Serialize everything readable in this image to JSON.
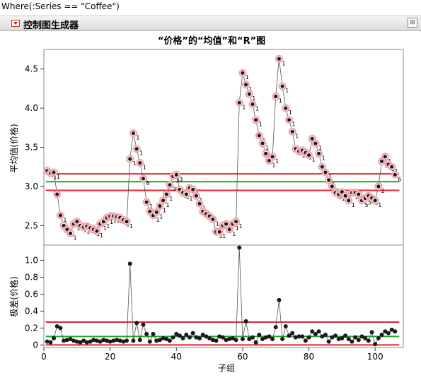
{
  "where_clause": "Where(:Series == \"Coffee\")",
  "platform_title": "控制图生成器",
  "colors": {
    "limit": "#e8222e",
    "center": "#22a32a",
    "point": "#1a1a1a",
    "flag": "#f2a0a8",
    "line": "#555555"
  },
  "chart_data": [
    {
      "type": "line",
      "title": "“价格”的“均值”和“R”图",
      "xlabel": "",
      "ylabel": "平均值(价格)",
      "ylim": [
        2.25,
        4.75
      ],
      "yticks": [
        "2.5",
        "3.0",
        "3.5",
        "4.0",
        "4.5"
      ],
      "x": [
        1,
        2,
        3,
        4,
        5,
        6,
        7,
        8,
        9,
        10,
        11,
        12,
        13,
        14,
        15,
        16,
        17,
        18,
        19,
        20,
        21,
        22,
        23,
        24,
        25,
        26,
        27,
        28,
        29,
        30,
        31,
        32,
        33,
        34,
        35,
        36,
        37,
        38,
        39,
        40,
        41,
        42,
        43,
        44,
        45,
        46,
        47,
        48,
        49,
        50,
        51,
        52,
        53,
        54,
        55,
        56,
        57,
        58,
        59,
        60,
        61,
        62,
        63,
        64,
        65,
        66,
        67,
        68,
        69,
        70,
        71,
        72,
        73,
        74,
        75,
        76,
        77,
        78,
        79,
        80,
        81,
        82,
        83,
        84,
        85,
        86,
        87,
        88,
        89,
        90,
        91,
        92,
        93,
        94,
        95,
        96,
        97,
        98,
        99,
        100,
        101,
        102,
        103,
        104,
        105,
        106
      ],
      "values": [
        3.2,
        3.17,
        3.18,
        2.9,
        2.63,
        2.5,
        2.45,
        2.4,
        2.52,
        2.55,
        2.5,
        2.48,
        2.49,
        2.47,
        2.45,
        2.43,
        2.52,
        2.55,
        2.6,
        2.62,
        2.62,
        2.61,
        2.6,
        2.57,
        2.55,
        3.35,
        3.68,
        3.48,
        3.3,
        3.1,
        2.8,
        2.68,
        2.63,
        2.67,
        2.75,
        2.82,
        2.9,
        3.02,
        3.13,
        3.15,
        2.96,
        2.92,
        2.9,
        2.98,
        2.96,
        2.88,
        2.78,
        2.68,
        2.65,
        2.62,
        2.58,
        2.42,
        2.42,
        2.5,
        2.52,
        2.45,
        2.52,
        2.55,
        4.07,
        4.45,
        4.3,
        4.18,
        4.05,
        3.85,
        3.65,
        3.55,
        3.42,
        3.33,
        3.38,
        4.15,
        4.63,
        4.28,
        4.0,
        3.85,
        3.7,
        3.48,
        3.45,
        3.46,
        3.43,
        3.4,
        3.61,
        3.55,
        3.42,
        3.25,
        3.18,
        3.08,
        3.0,
        2.92,
        2.9,
        2.93,
        2.88,
        2.82,
        2.92,
        2.92,
        2.9,
        2.82,
        2.85,
        2.88,
        2.85,
        2.82,
        3.0,
        3.32,
        3.38,
        3.28,
        3.25,
        3.15
      ],
      "point_labels": [
        "1",
        "1",
        "1",
        "",
        "1",
        "1",
        "1",
        "1",
        "1",
        "1",
        "1",
        "1",
        "1",
        "1",
        "1",
        "1",
        "1",
        "1",
        "1",
        "1",
        "1",
        "1",
        "1",
        "1",
        "1",
        "1",
        "1",
        "1",
        "1",
        "8",
        "1",
        "1",
        "1",
        "1",
        "1",
        "1",
        "1",
        "3",
        "3",
        "3",
        "8",
        "1",
        "1",
        "1",
        "1",
        "1",
        "1",
        "1",
        "1",
        "1",
        "1",
        "1",
        "1",
        "1",
        "1",
        "1",
        "1",
        "1",
        "1",
        "1",
        "1",
        "1",
        "1",
        "1",
        "1",
        "1",
        "1",
        "1",
        "1",
        "1",
        "1",
        "1",
        "1",
        "1",
        "1",
        "1",
        "1",
        "1",
        "1",
        "1",
        "1",
        "1",
        "1",
        "1",
        "1",
        "1",
        "3",
        "3",
        "1",
        "1",
        "1",
        "1",
        "1",
        "1",
        "1",
        "5",
        "5",
        "1",
        "1",
        "1",
        "2",
        "1",
        "1",
        "1",
        "1",
        "6"
      ],
      "ucl": 3.16,
      "center": 3.06,
      "lcl": 2.95,
      "grid": false
    },
    {
      "type": "line",
      "title": "",
      "xlabel": "子组",
      "ylabel": "极差(价格)",
      "ylim": [
        -0.03,
        1.18
      ],
      "yticks": [
        "0",
        "0.2",
        "0.4",
        "0.6",
        "0.8",
        "1.0"
      ],
      "xticks": [
        "0",
        "20",
        "40",
        "60",
        "80",
        "100"
      ],
      "x": [
        1,
        2,
        3,
        4,
        5,
        6,
        7,
        8,
        9,
        10,
        11,
        12,
        13,
        14,
        15,
        16,
        17,
        18,
        19,
        20,
        21,
        22,
        23,
        24,
        25,
        26,
        27,
        28,
        29,
        30,
        31,
        32,
        33,
        34,
        35,
        36,
        37,
        38,
        39,
        40,
        41,
        42,
        43,
        44,
        45,
        46,
        47,
        48,
        49,
        50,
        51,
        52,
        53,
        54,
        55,
        56,
        57,
        58,
        59,
        60,
        61,
        62,
        63,
        64,
        65,
        66,
        67,
        68,
        69,
        70,
        71,
        72,
        73,
        74,
        75,
        76,
        77,
        78,
        79,
        80,
        81,
        82,
        83,
        84,
        85,
        86,
        87,
        88,
        89,
        90,
        91,
        92,
        93,
        94,
        95,
        96,
        97,
        98,
        99,
        100,
        101,
        102,
        103,
        104,
        105,
        106
      ],
      "values": [
        0.04,
        0.03,
        0.08,
        0.22,
        0.2,
        0.05,
        0.06,
        0.07,
        0.05,
        0.04,
        0.03,
        0.05,
        0.03,
        0.04,
        0.06,
        0.05,
        0.04,
        0.06,
        0.05,
        0.04,
        0.05,
        0.06,
        0.05,
        0.04,
        0.05,
        0.96,
        0.05,
        0.26,
        0.06,
        0.24,
        0.13,
        0.04,
        0.13,
        0.05,
        0.06,
        0.08,
        0.07,
        0.05,
        0.09,
        0.13,
        0.11,
        0.08,
        0.12,
        0.09,
        0.14,
        0.09,
        0.08,
        0.12,
        0.1,
        0.08,
        0.06,
        0.05,
        0.1,
        0.09,
        0.06,
        0.07,
        0.08,
        0.06,
        1.15,
        0.07,
        0.28,
        0.07,
        0.09,
        0.03,
        0.12,
        0.07,
        0.09,
        0.1,
        0.07,
        0.21,
        0.53,
        0.07,
        0.22,
        0.11,
        0.14,
        0.09,
        0.1,
        0.1,
        0.05,
        0.09,
        0.16,
        0.13,
        0.16,
        0.1,
        0.12,
        0.04,
        0.09,
        0.11,
        0.07,
        0.08,
        0.11,
        0.07,
        0.04,
        0.09,
        0.06,
        0.1,
        0.08,
        0.05,
        0.15,
        0.01,
        0.08,
        0.12,
        0.16,
        0.14,
        0.18,
        0.16
      ],
      "ucl": 0.27,
      "center": 0.1,
      "lcl": 0.0,
      "grid": false
    }
  ]
}
